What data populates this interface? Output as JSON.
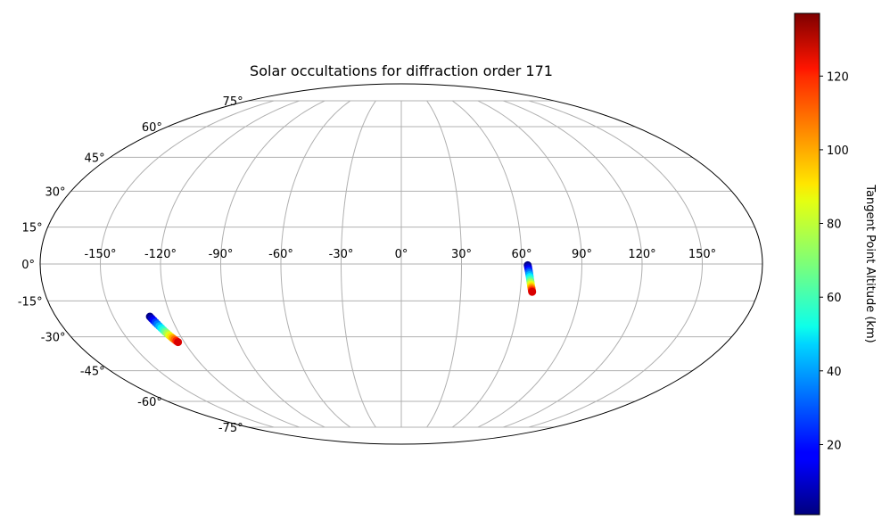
{
  "chart_data": {
    "type": "scatter",
    "projection": "mollweide",
    "title": "Solar occultations for diffraction order 171",
    "xlabel": "",
    "ylabel": "",
    "xlim": [
      -180,
      180
    ],
    "ylim": [
      -90,
      90
    ],
    "grid": true,
    "lon_ticks": [
      -150,
      -120,
      -90,
      -60,
      -30,
      0,
      30,
      60,
      90,
      120,
      150
    ],
    "lat_ticks": [
      -75,
      -60,
      -45,
      -30,
      -15,
      0,
      15,
      30,
      45,
      60,
      75
    ],
    "lon_tick_labels": [
      "-150°",
      "-120°",
      "-90°",
      "-60°",
      "-30°",
      "0°",
      "30°",
      "60°",
      "90°",
      "120°",
      "150°"
    ],
    "lat_tick_labels": [
      "-75°",
      "-60°",
      "-45°",
      "-30°",
      "-15°",
      "0°",
      "15°",
      "30°",
      "45°",
      "60°",
      "75°"
    ],
    "colorbar": {
      "label": "Tangent Point Altitude (km)",
      "colormap": "jet",
      "range": [
        1,
        137
      ],
      "ticks": [
        20,
        40,
        60,
        80,
        100,
        120
      ],
      "tick_labels": [
        "20",
        "40",
        "60",
        "80",
        "100",
        "120"
      ]
    },
    "series": [
      {
        "lon": [
          -131,
          -130.5,
          -130,
          -129.5,
          -129,
          -128.5,
          -128,
          -127.5,
          -127,
          -126.5,
          -126,
          -125.5,
          -125,
          -124.5,
          -124,
          -123.5
        ],
        "lat": [
          -21.5,
          -22.3,
          -23.1,
          -23.9,
          -24.7,
          -25.5,
          -26.3,
          -27.1,
          -27.9,
          -28.6,
          -29.3,
          -30.0,
          -30.6,
          -31.2,
          -31.8,
          -32.3
        ],
        "altitude": [
          2,
          10,
          18,
          26,
          34,
          42,
          50,
          58,
          66,
          74,
          82,
          90,
          98,
          106,
          115,
          125
        ]
      },
      {
        "lon": [
          63.0,
          63.2,
          63.4,
          63.6,
          63.8,
          64.0,
          64.2,
          64.4,
          64.6,
          64.8,
          65.0,
          65.2,
          65.4,
          65.6,
          65.8,
          66.0
        ],
        "lat": [
          -0.5,
          -1.3,
          -2.1,
          -2.9,
          -3.7,
          -4.5,
          -5.3,
          -6.1,
          -6.9,
          -7.6,
          -8.3,
          -9.0,
          -9.6,
          -10.2,
          -10.8,
          -11.3
        ],
        "altitude": [
          2,
          10,
          18,
          26,
          34,
          42,
          50,
          58,
          66,
          74,
          82,
          90,
          98,
          106,
          115,
          125
        ]
      }
    ]
  }
}
